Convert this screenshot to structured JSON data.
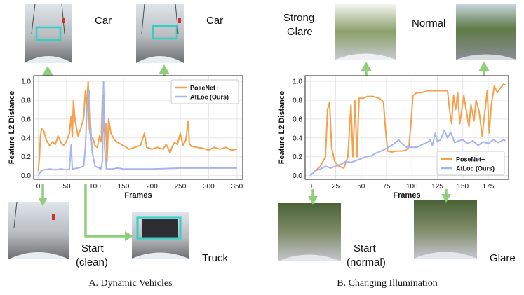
{
  "chart_data": [
    {
      "type": "line",
      "caption": "A. Dynamic Vehicles",
      "xlabel": "Frames",
      "ylabel": "Feature L2 Distance",
      "xlim": [
        -8,
        360
      ],
      "ylim": [
        -0.04,
        1.06
      ],
      "xticks": [
        0,
        50,
        100,
        150,
        200,
        250,
        300,
        350
      ],
      "yticks": [
        0.0,
        0.2,
        0.4,
        0.6,
        0.8,
        1.0
      ],
      "grid": true,
      "legend": "top-right",
      "series": [
        {
          "name": "PoseNet+",
          "color": "#f5a04a",
          "points": [
            [
              0,
              0.05
            ],
            [
              2,
              0.18
            ],
            [
              4,
              0.42
            ],
            [
              6,
              0.5
            ],
            [
              10,
              0.47
            ],
            [
              14,
              0.38
            ],
            [
              20,
              0.32
            ],
            [
              25,
              0.36
            ],
            [
              30,
              0.33
            ],
            [
              35,
              0.42
            ],
            [
              40,
              0.35
            ],
            [
              45,
              0.32
            ],
            [
              50,
              0.37
            ],
            [
              55,
              0.45
            ],
            [
              58,
              0.63
            ],
            [
              60,
              0.41
            ],
            [
              62,
              0.8
            ],
            [
              65,
              0.58
            ],
            [
              70,
              0.42
            ],
            [
              75,
              0.5
            ],
            [
              80,
              0.61
            ],
            [
              83,
              0.9
            ],
            [
              85,
              0.72
            ],
            [
              88,
              1.0
            ],
            [
              90,
              0.5
            ],
            [
              93,
              0.38
            ],
            [
              96,
              0.4
            ],
            [
              100,
              0.32
            ],
            [
              104,
              0.3
            ],
            [
              108,
              0.42
            ],
            [
              111,
              0.36
            ],
            [
              113,
              0.85
            ],
            [
              115,
              0.5
            ],
            [
              117,
              0.45
            ],
            [
              119,
              0.55
            ],
            [
              121,
              0.15
            ],
            [
              124,
              0.6
            ],
            [
              128,
              0.45
            ],
            [
              134,
              0.38
            ],
            [
              140,
              0.35
            ],
            [
              150,
              0.32
            ],
            [
              160,
              0.28
            ],
            [
              170,
              0.3
            ],
            [
              180,
              0.32
            ],
            [
              187,
              0.45
            ],
            [
              191,
              0.3
            ],
            [
              200,
              0.28
            ],
            [
              210,
              0.3
            ],
            [
              220,
              0.28
            ],
            [
              225,
              0.33
            ],
            [
              228,
              0.3
            ],
            [
              232,
              0.24
            ],
            [
              236,
              0.31
            ],
            [
              240,
              0.35
            ],
            [
              245,
              0.33
            ],
            [
              250,
              0.45
            ],
            [
              255,
              0.32
            ],
            [
              260,
              0.38
            ],
            [
              264,
              0.58
            ],
            [
              266,
              0.34
            ],
            [
              270,
              0.31
            ],
            [
              280,
              0.3
            ],
            [
              290,
              0.29
            ],
            [
              300,
              0.27
            ],
            [
              310,
              0.3
            ],
            [
              320,
              0.28
            ],
            [
              330,
              0.3
            ],
            [
              340,
              0.27
            ],
            [
              350,
              0.28
            ]
          ]
        },
        {
          "name": "AtLoc (Ours)",
          "color": "#a6b4f2",
          "points": [
            [
              0,
              0.0
            ],
            [
              5,
              0.05
            ],
            [
              10,
              0.06
            ],
            [
              20,
              0.07
            ],
            [
              30,
              0.06
            ],
            [
              40,
              0.07
            ],
            [
              50,
              0.06
            ],
            [
              55,
              0.07
            ],
            [
              58,
              0.33
            ],
            [
              60,
              0.07
            ],
            [
              70,
              0.08
            ],
            [
              80,
              0.1
            ],
            [
              83,
              0.3
            ],
            [
              86,
              0.72
            ],
            [
              88,
              0.82
            ],
            [
              90,
              0.9
            ],
            [
              92,
              0.55
            ],
            [
              95,
              0.25
            ],
            [
              100,
              0.1
            ],
            [
              110,
              0.07
            ],
            [
              113,
              0.15
            ],
            [
              115,
              1.0
            ],
            [
              117,
              0.3
            ],
            [
              120,
              0.07
            ],
            [
              130,
              0.07
            ],
            [
              140,
              0.08
            ],
            [
              150,
              0.07
            ],
            [
              200,
              0.07
            ],
            [
              250,
              0.08
            ],
            [
              300,
              0.08
            ],
            [
              350,
              0.08
            ]
          ]
        }
      ]
    },
    {
      "type": "line",
      "caption": "B. Changing Illumination",
      "xlabel": "Frames",
      "ylabel": "Feature L2 Distance",
      "xlim": [
        -5,
        195
      ],
      "ylim": [
        -0.04,
        1.06
      ],
      "xticks": [
        0,
        25,
        50,
        75,
        100,
        125,
        150,
        175
      ],
      "yticks": [
        0.0,
        0.2,
        0.4,
        0.6,
        0.8,
        1.0
      ],
      "grid": true,
      "legend": "bottom-right",
      "series": [
        {
          "name": "PoseNet+",
          "color": "#f5a04a",
          "points": [
            [
              0,
              0.0
            ],
            [
              5,
              0.05
            ],
            [
              10,
              0.1
            ],
            [
              15,
              0.2
            ],
            [
              17,
              0.7
            ],
            [
              19,
              0.78
            ],
            [
              21,
              0.3
            ],
            [
              24,
              0.15
            ],
            [
              28,
              0.1
            ],
            [
              33,
              0.08
            ],
            [
              37,
              0.2
            ],
            [
              40,
              0.75
            ],
            [
              42,
              0.2
            ],
            [
              44,
              0.8
            ],
            [
              46,
              0.2
            ],
            [
              48,
              0.82
            ],
            [
              52,
              0.82
            ],
            [
              56,
              0.84
            ],
            [
              62,
              0.84
            ],
            [
              68,
              0.82
            ],
            [
              72,
              0.78
            ],
            [
              74,
              0.5
            ],
            [
              76,
              0.26
            ],
            [
              80,
              0.25
            ],
            [
              85,
              0.26
            ],
            [
              90,
              0.26
            ],
            [
              94,
              0.27
            ],
            [
              97,
              0.3
            ],
            [
              99,
              0.55
            ],
            [
              101,
              0.85
            ],
            [
              105,
              0.88
            ],
            [
              110,
              0.88
            ],
            [
              115,
              0.9
            ],
            [
              120,
              0.9
            ],
            [
              125,
              0.9
            ],
            [
              130,
              0.9
            ],
            [
              135,
              0.9
            ],
            [
              137,
              0.7
            ],
            [
              139,
              0.55
            ],
            [
              141,
              0.85
            ],
            [
              143,
              0.7
            ],
            [
              145,
              0.88
            ],
            [
              147,
              0.55
            ],
            [
              149,
              0.7
            ],
            [
              151,
              0.85
            ],
            [
              154,
              0.65
            ],
            [
              156,
              0.52
            ],
            [
              158,
              0.75
            ],
            [
              161,
              0.58
            ],
            [
              163,
              0.8
            ],
            [
              166,
              0.68
            ],
            [
              169,
              0.42
            ],
            [
              172,
              0.7
            ],
            [
              174,
              0.9
            ],
            [
              176,
              0.45
            ],
            [
              178,
              0.75
            ],
            [
              181,
              0.95
            ],
            [
              184,
              0.88
            ],
            [
              187,
              0.93
            ],
            [
              190,
              0.97
            ],
            [
              192,
              0.96
            ]
          ]
        },
        {
          "name": "AtLoc (Ours)",
          "color": "#a6b4f2",
          "points": [
            [
              0,
              0.0
            ],
            [
              5,
              0.05
            ],
            [
              10,
              0.07
            ],
            [
              15,
              0.1
            ],
            [
              20,
              0.08
            ],
            [
              25,
              0.1
            ],
            [
              30,
              0.12
            ],
            [
              35,
              0.15
            ],
            [
              40,
              0.14
            ],
            [
              45,
              0.16
            ],
            [
              50,
              0.18
            ],
            [
              55,
              0.2
            ],
            [
              60,
              0.21
            ],
            [
              65,
              0.24
            ],
            [
              70,
              0.26
            ],
            [
              75,
              0.29
            ],
            [
              80,
              0.32
            ],
            [
              85,
              0.36
            ],
            [
              87,
              0.38
            ],
            [
              90,
              0.34
            ],
            [
              95,
              0.3
            ],
            [
              100,
              0.3
            ],
            [
              105,
              0.3
            ],
            [
              110,
              0.33
            ],
            [
              115,
              0.35
            ],
            [
              118,
              0.38
            ],
            [
              120,
              0.32
            ],
            [
              123,
              0.45
            ],
            [
              125,
              0.36
            ],
            [
              128,
              0.38
            ],
            [
              132,
              0.48
            ],
            [
              135,
              0.4
            ],
            [
              138,
              0.46
            ],
            [
              142,
              0.35
            ],
            [
              146,
              0.37
            ],
            [
              150,
              0.38
            ],
            [
              155,
              0.34
            ],
            [
              160,
              0.37
            ],
            [
              165,
              0.32
            ],
            [
              170,
              0.36
            ],
            [
              175,
              0.34
            ],
            [
              180,
              0.38
            ],
            [
              185,
              0.35
            ],
            [
              190,
              0.38
            ],
            [
              192,
              0.37
            ]
          ]
        }
      ]
    }
  ],
  "annotations": {
    "a_top_left": "Car",
    "a_top_right": "Car",
    "a_bottom_left": [
      "Start",
      "(clean)"
    ],
    "a_bottom_right": "Truck",
    "b_top_left": [
      "Strong",
      "Glare"
    ],
    "b_top_right": "Normal",
    "b_bottom_left": [
      "Start",
      "(normal)"
    ],
    "b_bottom_right": "Glare"
  },
  "colors": {
    "arrow": "#8fcf7b",
    "box": "#2fd0c6",
    "grid": "#e6e6e6"
  }
}
